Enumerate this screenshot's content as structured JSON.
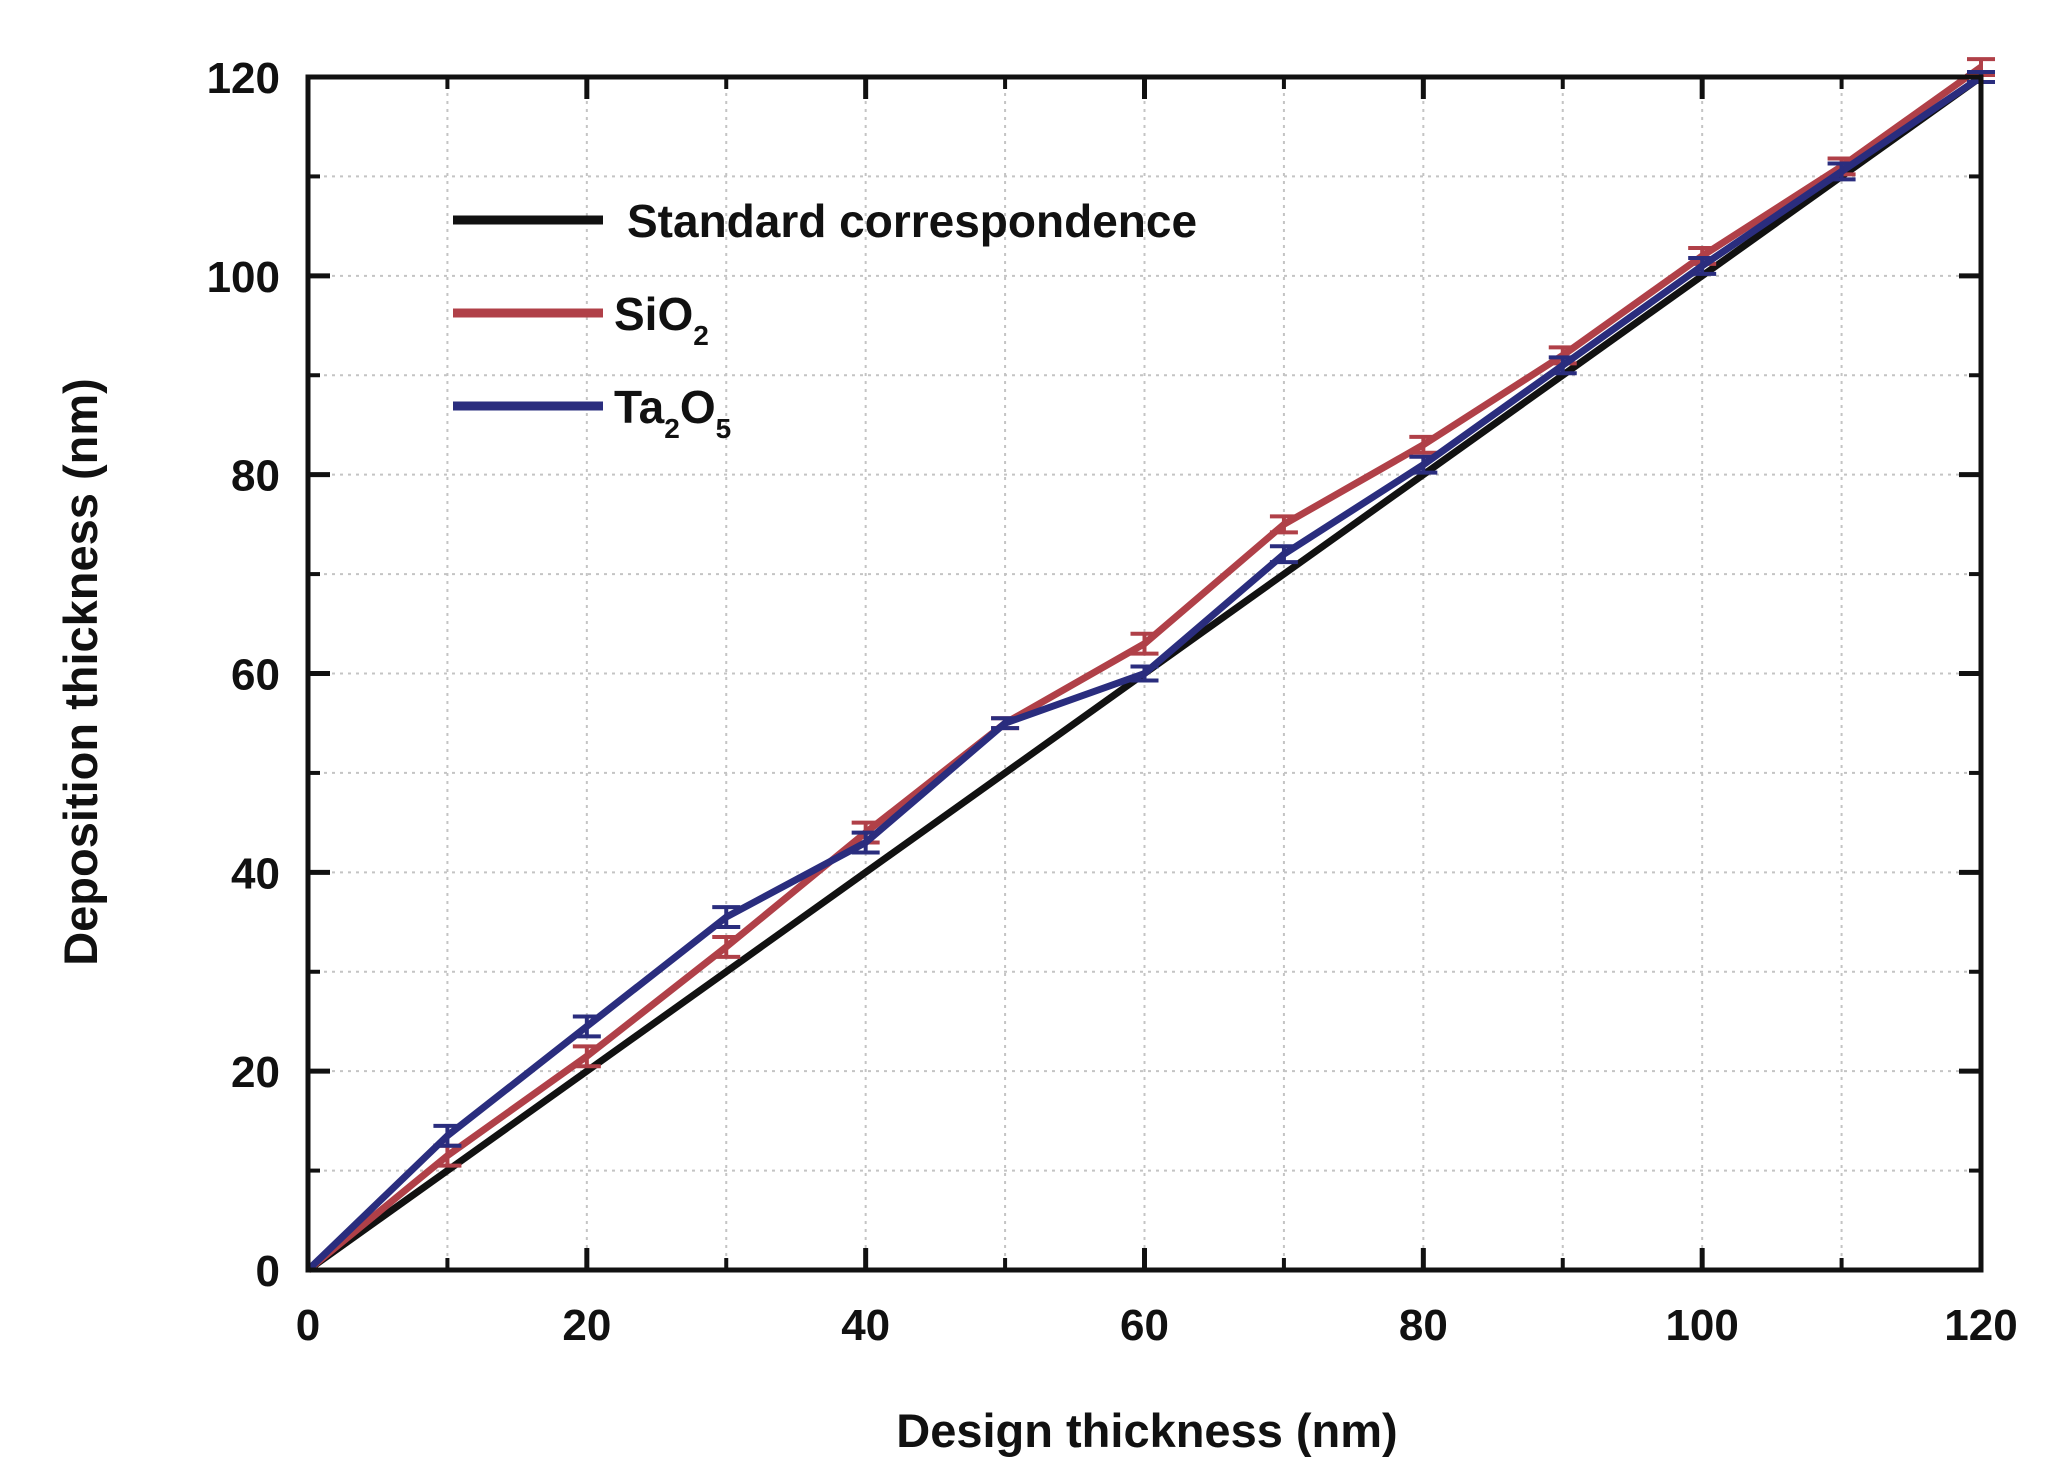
{
  "chart_data": {
    "type": "line",
    "title": "",
    "xlabel": "Design thickness (nm)",
    "ylabel": "Deposition thickness (nm)",
    "xlim": [
      0,
      120
    ],
    "ylim": [
      0,
      120
    ],
    "xticks": [
      0,
      20,
      40,
      60,
      80,
      100,
      120
    ],
    "yticks": [
      0,
      20,
      40,
      60,
      80,
      100,
      120
    ],
    "xtick_labels": [
      "0",
      "20",
      "40",
      "60",
      "80",
      "100",
      "120"
    ],
    "ytick_labels": [
      "0",
      "20",
      "40",
      "60",
      "80",
      "100",
      "120"
    ],
    "grid": true,
    "legend_position": "top-left",
    "series": [
      {
        "name": "Standard correspondence",
        "color": "#111111",
        "x": [
          0,
          120
        ],
        "y": [
          0,
          120
        ],
        "error": null
      },
      {
        "name": "SiO2",
        "label_main": "SiO",
        "label_sub": "2",
        "color": "#b04048",
        "x": [
          0,
          10,
          20,
          30,
          40,
          50,
          60,
          70,
          80,
          90,
          100,
          110,
          120
        ],
        "y": [
          0,
          11.5,
          21.5,
          32.5,
          44,
          55,
          63,
          75,
          83,
          92,
          102,
          111,
          121
        ],
        "error": [
          0,
          1,
          1,
          1,
          1,
          0.5,
          1,
          0.8,
          0.8,
          0.8,
          0.8,
          0.8,
          0.8
        ]
      },
      {
        "name": "Ta2O5",
        "label_parts": [
          {
            "text": "Ta",
            "sub": false
          },
          {
            "text": "2",
            "sub": true
          },
          {
            "text": "O",
            "sub": false
          },
          {
            "text": "5",
            "sub": true
          }
        ],
        "color": "#2a2d7e",
        "x": [
          0,
          10,
          20,
          30,
          40,
          50,
          60,
          70,
          80,
          90,
          100,
          110,
          120
        ],
        "y": [
          0,
          13.5,
          24.5,
          35.5,
          43,
          55,
          60,
          72,
          81,
          91,
          101,
          110.5,
          120
        ],
        "error": [
          0,
          1,
          1,
          1,
          1,
          0.5,
          0.7,
          0.8,
          0.8,
          0.8,
          0.8,
          0.8,
          0.5
        ]
      }
    ]
  }
}
